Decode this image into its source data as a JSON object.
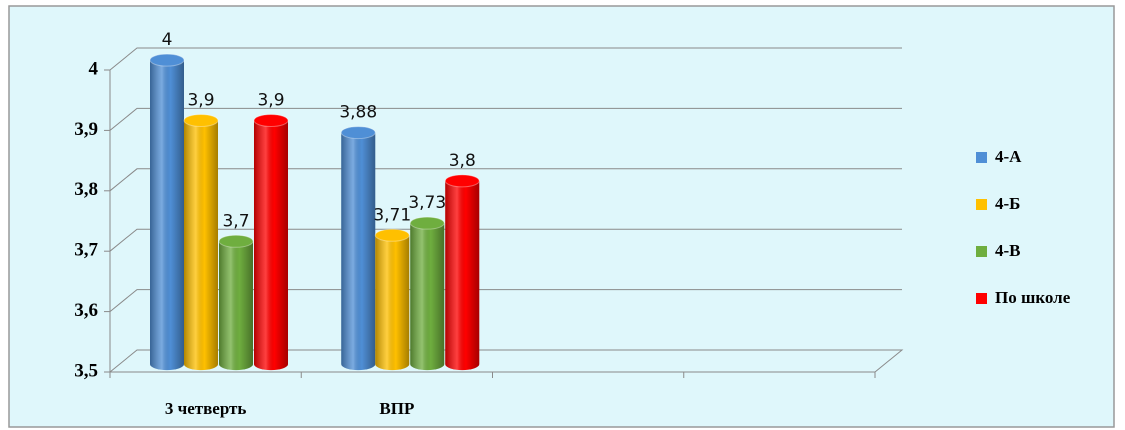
{
  "chart_data": {
    "type": "bar",
    "categories": [
      "3 четверть",
      "ВПР",
      null,
      null
    ],
    "series": [
      {
        "name": "4-А",
        "color": "#4f8fd6",
        "values": [
          4,
          3.88,
          null,
          null
        ],
        "value_labels": [
          "4",
          "3,88",
          null,
          null
        ]
      },
      {
        "name": "4-Б",
        "color": "#ffc000",
        "values": [
          3.9,
          3.71,
          null,
          null
        ],
        "value_labels": [
          "3,9",
          "3,71",
          null,
          null
        ]
      },
      {
        "name": "4-В",
        "color": "#6fae3f",
        "values": [
          3.7,
          3.73,
          null,
          null
        ],
        "value_labels": [
          "3,7",
          "3,73",
          null,
          null
        ]
      },
      {
        "name": "По школе",
        "color": "#ff0000",
        "values": [
          3.9,
          3.8,
          null,
          null
        ],
        "value_labels": [
          "3,9",
          "3,8",
          null,
          null
        ]
      }
    ],
    "ylim": [
      3.5,
      4
    ],
    "yticks": [
      {
        "value": 3.5,
        "label": "3,5"
      },
      {
        "value": 3.6,
        "label": "3,6"
      },
      {
        "value": 3.7,
        "label": "3,7"
      },
      {
        "value": 3.8,
        "label": "3,8"
      },
      {
        "value": 3.9,
        "label": "3,9"
      },
      4
    ],
    "grid": true,
    "legend": "right"
  }
}
